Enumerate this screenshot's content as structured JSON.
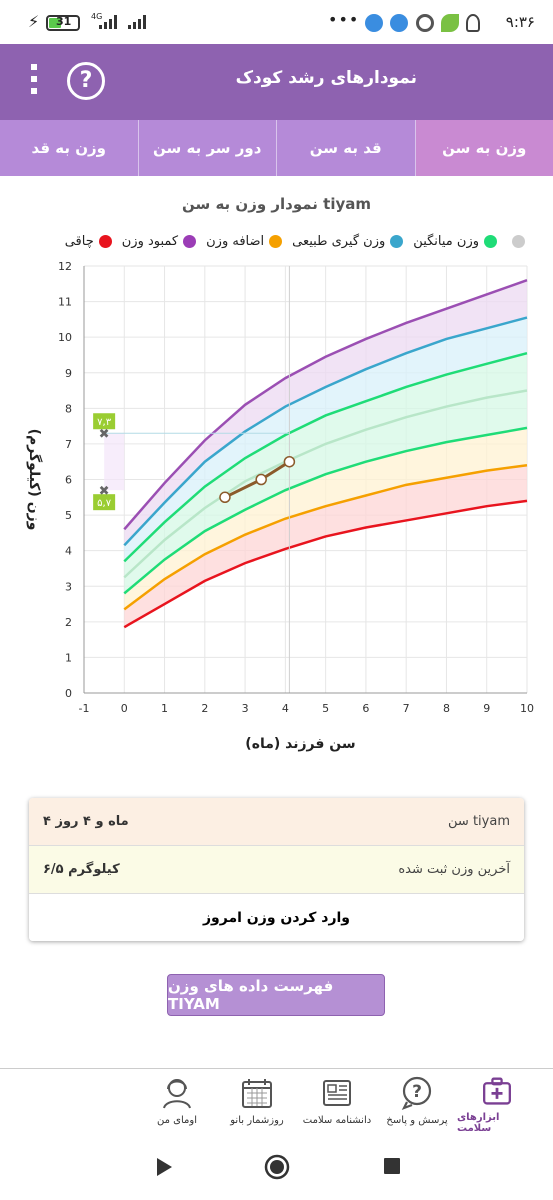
{
  "status_bar": {
    "time": "۹:۳۶",
    "battery": "31",
    "dots": "•••",
    "network": "4G"
  },
  "toolbar": {
    "title": "نمودارهای رشد کودک",
    "help_glyph": "?"
  },
  "tabs": [
    {
      "label": "وزن به سن",
      "active": true
    },
    {
      "label": "قد به سن",
      "active": false
    },
    {
      "label": "دور سر به سن",
      "active": false
    },
    {
      "label": "وزن به قد",
      "active": false
    }
  ],
  "chart_title": "نمودار وزن به سن tiyam",
  "legend": [
    {
      "label": "چاقی",
      "color": "#e8141e"
    },
    {
      "label": "کمبود وزن",
      "color": "#9b3db6"
    },
    {
      "label": "اضافه وزن",
      "color": "#f5a000"
    },
    {
      "label": "وزن گیری طبیعی",
      "color": "#3aa6cc"
    },
    {
      "label": "وزن میانگین",
      "color": "#1fdc77"
    },
    {
      "label": "",
      "color": "#cccccc"
    }
  ],
  "chart_data": {
    "type": "line",
    "xlabel": "سن فرزند (ماه)",
    "ylabel": "وزن (کیلوگرم)",
    "xlim": [
      -1,
      10
    ],
    "ylim": [
      0,
      12
    ],
    "x_ticks": [
      -1,
      0,
      1,
      2,
      3,
      4,
      5,
      6,
      7,
      8,
      9,
      10
    ],
    "y_ticks": [
      0,
      1,
      2,
      3,
      4,
      5,
      6,
      7,
      8,
      9,
      10,
      11,
      12
    ],
    "x": [
      0,
      1,
      2,
      3,
      4,
      5,
      6,
      7,
      8,
      9,
      10
    ],
    "series": [
      {
        "color": "#9b4fb3",
        "values": [
          4.6,
          5.9,
          7.1,
          8.1,
          8.85,
          9.45,
          9.95,
          10.4,
          10.8,
          11.2,
          11.6
        ]
      },
      {
        "color": "#3aa6cc",
        "values": [
          4.15,
          5.35,
          6.5,
          7.35,
          8.05,
          8.6,
          9.1,
          9.55,
          9.95,
          10.25,
          10.55
        ]
      },
      {
        "color": "#1fdc77",
        "values": [
          3.7,
          4.8,
          5.8,
          6.6,
          7.25,
          7.8,
          8.2,
          8.6,
          8.95,
          9.25,
          9.55
        ]
      },
      {
        "color": "#b8e6c8",
        "values": [
          3.25,
          4.3,
          5.2,
          5.95,
          6.5,
          7.0,
          7.4,
          7.75,
          8.05,
          8.3,
          8.5
        ]
      },
      {
        "color": "#1fdc77",
        "values": [
          2.8,
          3.75,
          4.55,
          5.15,
          5.7,
          6.15,
          6.5,
          6.8,
          7.05,
          7.25,
          7.45
        ]
      },
      {
        "color": "#f5a000",
        "values": [
          2.35,
          3.2,
          3.9,
          4.45,
          4.9,
          5.25,
          5.55,
          5.85,
          6.05,
          6.25,
          6.4
        ]
      },
      {
        "color": "#e8141e",
        "values": [
          1.85,
          2.5,
          3.15,
          3.65,
          4.05,
          4.4,
          4.65,
          4.85,
          5.05,
          5.25,
          5.4
        ]
      }
    ],
    "child_series": {
      "color": "#8b5a2b",
      "x": [
        2.5,
        3.4,
        4.1
      ],
      "y": [
        5.5,
        6.0,
        6.5
      ]
    },
    "markers": [
      {
        "x": -0.5,
        "y": 7.3,
        "label": "۷,۳"
      },
      {
        "x": -0.5,
        "y": 5.7,
        "label": "۵,۷"
      }
    ]
  },
  "info": {
    "age_label": "سن tiyam",
    "age_value": "۴ ماه و ۴ روز",
    "weight_label": "آخرین وزن ثبت شده",
    "weight_value": "۶/۵ کیلوگرم",
    "enter_weight": "وارد کردن وزن امروز"
  },
  "list_button": "فهرست داده های وزن TIYAM",
  "bottom_nav": [
    {
      "label": "ابزارهای سلامت",
      "icon": "medical-kit-icon",
      "active": true
    },
    {
      "label": "پرسش و پاسخ",
      "icon": "question-bubble-icon",
      "active": false
    },
    {
      "label": "دانشنامه سلامت",
      "icon": "newspaper-icon",
      "active": false
    },
    {
      "label": "روزشمار بانو",
      "icon": "calendar-icon",
      "active": false
    },
    {
      "label": "اومای من",
      "icon": "woman-avatar-icon",
      "active": false
    }
  ]
}
